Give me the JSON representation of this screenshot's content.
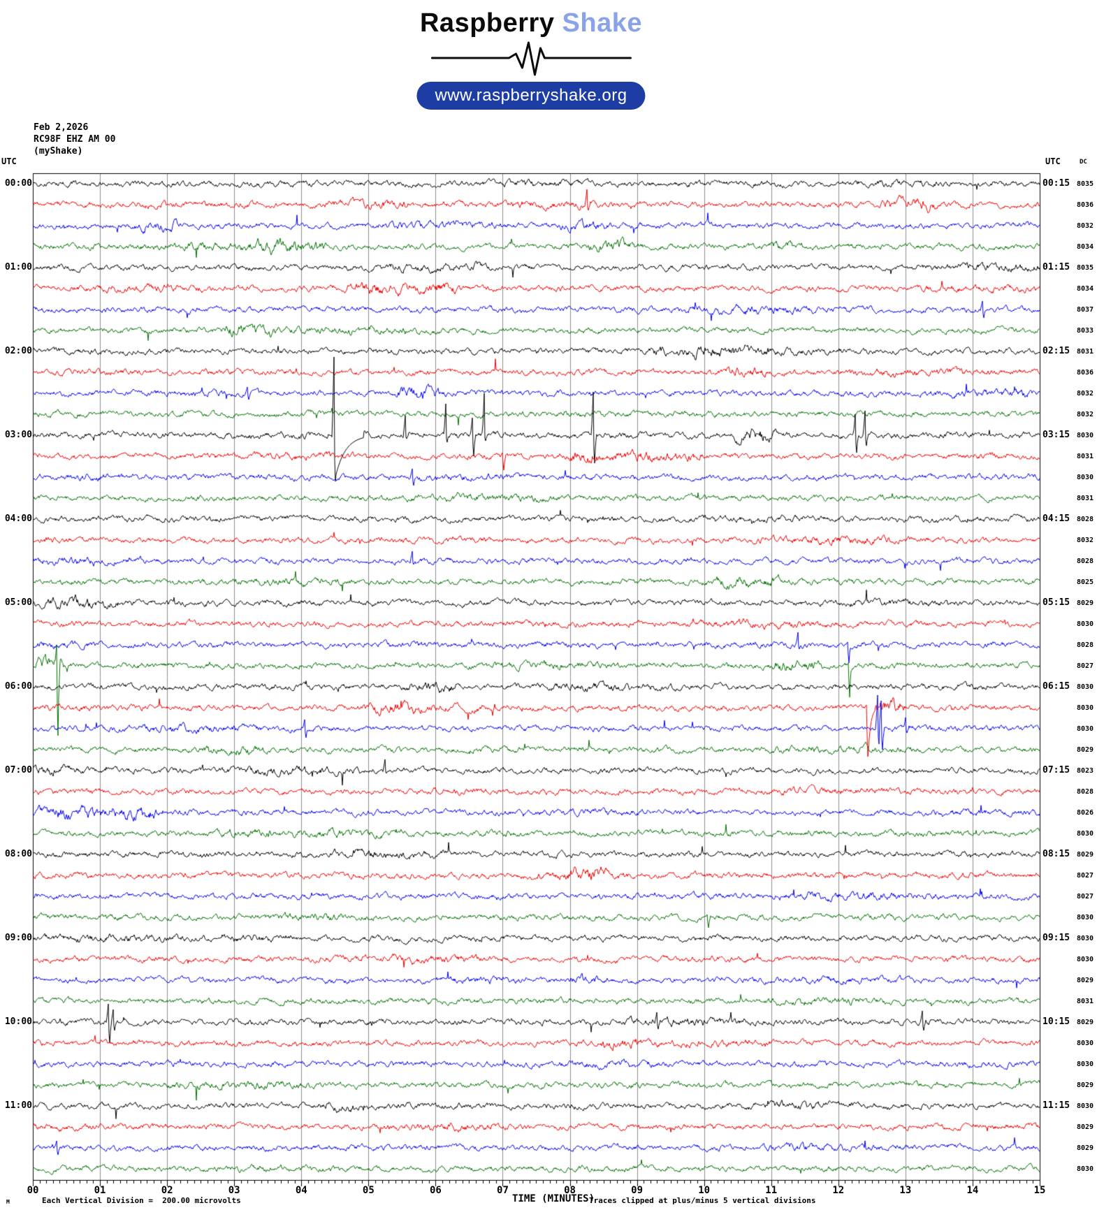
{
  "header": {
    "brand_black": "Raspberry",
    "brand_blue": "Shake",
    "url": "www.raspberryshake.org"
  },
  "station": {
    "date": "Feb 2,2026",
    "id": "RC98F EHZ AM 00",
    "network": "(myShake)"
  },
  "labels": {
    "utc_left": "UTC",
    "utc_right": "UTC",
    "dc_header": "DC",
    "xlabel": "TIME (MINUTES)",
    "clip_note": "Traces clipped at plus/minus 5 vertical divisions",
    "scale_note": "Each Vertical Division =  200.00 microvolts",
    "scale_glyph": "M"
  },
  "chart_data": {
    "type": "line",
    "subtype": "seismogram-helicorder",
    "title": "RC98F EHZ AM 00 helicorder, Feb 2,2026",
    "x_minutes_span": [
      0,
      15
    ],
    "x_tick_labels": [
      "00",
      "01",
      "02",
      "03",
      "04",
      "05",
      "06",
      "07",
      "08",
      "09",
      "10",
      "11",
      "12",
      "13",
      "14",
      "15"
    ],
    "minor_tick_step_minutes": 0.1,
    "row_line_colors": {
      "black": "#000000",
      "red": "#ee0000",
      "blue": "#0000ee",
      "green": "#007000"
    },
    "grid_color": "#8c8c8c",
    "rows_per_hour": 4,
    "minutes_per_row": 15,
    "rows": [
      {
        "color": "black",
        "dc": "8035",
        "left_label": "00:00",
        "right_label": "00:15"
      },
      {
        "color": "red",
        "dc": "8036"
      },
      {
        "color": "blue",
        "dc": "8032"
      },
      {
        "color": "green",
        "dc": "8034"
      },
      {
        "color": "black",
        "dc": "8035",
        "left_label": "01:00",
        "right_label": "01:15"
      },
      {
        "color": "red",
        "dc": "8034"
      },
      {
        "color": "blue",
        "dc": "8037"
      },
      {
        "color": "green",
        "dc": "8033"
      },
      {
        "color": "black",
        "dc": "8031",
        "left_label": "02:00",
        "right_label": "02:15"
      },
      {
        "color": "red",
        "dc": "8036"
      },
      {
        "color": "blue",
        "dc": "8032"
      },
      {
        "color": "green",
        "dc": "8032"
      },
      {
        "color": "black",
        "dc": "8030",
        "left_label": "03:00",
        "right_label": "03:15"
      },
      {
        "color": "red",
        "dc": "8031"
      },
      {
        "color": "blue",
        "dc": "8030"
      },
      {
        "color": "green",
        "dc": "8031"
      },
      {
        "color": "black",
        "dc": "8028",
        "left_label": "04:00",
        "right_label": "04:15"
      },
      {
        "color": "red",
        "dc": "8032"
      },
      {
        "color": "blue",
        "dc": "8028"
      },
      {
        "color": "green",
        "dc": "8025"
      },
      {
        "color": "black",
        "dc": "8029",
        "left_label": "05:00",
        "right_label": "05:15"
      },
      {
        "color": "red",
        "dc": "8030"
      },
      {
        "color": "blue",
        "dc": "8028"
      },
      {
        "color": "green",
        "dc": "8027"
      },
      {
        "color": "black",
        "dc": "8030",
        "left_label": "06:00",
        "right_label": "06:15"
      },
      {
        "color": "red",
        "dc": "8030"
      },
      {
        "color": "blue",
        "dc": "8030"
      },
      {
        "color": "green",
        "dc": "8029"
      },
      {
        "color": "black",
        "dc": "8023",
        "left_label": "07:00",
        "right_label": "07:15"
      },
      {
        "color": "red",
        "dc": "8028"
      },
      {
        "color": "blue",
        "dc": "8026"
      },
      {
        "color": "green",
        "dc": "8030"
      },
      {
        "color": "black",
        "dc": "8029",
        "left_label": "08:00",
        "right_label": "08:15"
      },
      {
        "color": "red",
        "dc": "8027"
      },
      {
        "color": "blue",
        "dc": "8027"
      },
      {
        "color": "green",
        "dc": "8030"
      },
      {
        "color": "black",
        "dc": "8030",
        "left_label": "09:00",
        "right_label": "09:15"
      },
      {
        "color": "red",
        "dc": "8030"
      },
      {
        "color": "blue",
        "dc": "8029"
      },
      {
        "color": "green",
        "dc": "8031"
      },
      {
        "color": "black",
        "dc": "8029",
        "left_label": "10:00",
        "right_label": "10:15"
      },
      {
        "color": "red",
        "dc": "8030"
      },
      {
        "color": "blue",
        "dc": "8030"
      },
      {
        "color": "green",
        "dc": "8029"
      },
      {
        "color": "black",
        "dc": "8030",
        "left_label": "11:00",
        "right_label": "11:15"
      },
      {
        "color": "red",
        "dc": "8029"
      },
      {
        "color": "blue",
        "dc": "8029"
      },
      {
        "color": "green",
        "dc": "8030"
      }
    ],
    "events": [
      {
        "row": 1,
        "type": "burst",
        "m0": 4.4,
        "m1": 5.6,
        "amp": 1.6
      },
      {
        "row": 1,
        "type": "spike",
        "m": 8.25,
        "up": 22,
        "dn": 8
      },
      {
        "row": 1,
        "type": "burst",
        "m0": 12.7,
        "m1": 13.4,
        "amp": 2.0
      },
      {
        "row": 2,
        "type": "burst",
        "m0": 1.6,
        "m1": 2.1,
        "amp": 2.0
      },
      {
        "row": 2,
        "type": "burst",
        "m0": 7.9,
        "m1": 8.6,
        "amp": 1.6
      },
      {
        "row": 3,
        "type": "burst",
        "m0": 3.3,
        "m1": 4.3,
        "amp": 1.9
      },
      {
        "row": 3,
        "type": "burst",
        "m0": 8.3,
        "m1": 9.0,
        "amp": 1.9
      },
      {
        "row": 3,
        "type": "burst",
        "m0": 11.0,
        "m1": 11.4,
        "amp": 1.7
      },
      {
        "row": 4,
        "type": "burst",
        "m0": 5.3,
        "m1": 6.6,
        "amp": 1.6
      },
      {
        "row": 5,
        "type": "burst",
        "m0": 4.7,
        "m1": 6.3,
        "amp": 2.0
      },
      {
        "row": 6,
        "type": "spike",
        "m": 14.15,
        "up": 12,
        "dn": 12
      },
      {
        "row": 7,
        "type": "burst",
        "m0": 2.9,
        "m1": 3.6,
        "amp": 2.0
      },
      {
        "row": 8,
        "type": "burst",
        "m0": 9.2,
        "m1": 10.6,
        "amp": 1.7
      },
      {
        "row": 9,
        "type": "burst",
        "m0": 10.4,
        "m1": 10.9,
        "amp": 1.7
      },
      {
        "row": 10,
        "type": "spike",
        "m": 3.2,
        "up": 9,
        "dn": 9
      },
      {
        "row": 10,
        "type": "burst",
        "m0": 5.5,
        "m1": 6.0,
        "amp": 2.4
      },
      {
        "row": 12,
        "type": "spike",
        "m": 4.49,
        "up": 112,
        "dn": 66,
        "tail": 40
      },
      {
        "row": 12,
        "type": "spike",
        "m": 5.55,
        "up": 28,
        "dn": 5
      },
      {
        "row": 12,
        "type": "spike",
        "m": 6.15,
        "up": 45,
        "dn": 10
      },
      {
        "row": 12,
        "type": "spike",
        "m": 6.55,
        "up": 25,
        "dn": 30
      },
      {
        "row": 12,
        "type": "spike",
        "m": 6.72,
        "up": 60,
        "dn": 8
      },
      {
        "row": 12,
        "type": "spike",
        "m": 8.35,
        "up": 62,
        "dn": 40
      },
      {
        "row": 12,
        "type": "burst",
        "m0": 10.5,
        "m1": 11.0,
        "amp": 2.5
      },
      {
        "row": 12,
        "type": "spike",
        "m": 12.25,
        "up": 30,
        "dn": 25
      },
      {
        "row": 12,
        "type": "spike",
        "m": 12.4,
        "up": 35,
        "dn": 15
      },
      {
        "row": 13,
        "type": "spike",
        "m": 7.0,
        "up": 5,
        "dn": 20
      },
      {
        "row": 13,
        "type": "burst",
        "m0": 8.0,
        "m1": 9.9,
        "amp": 1.9
      },
      {
        "row": 14,
        "type": "spike",
        "m": 5.65,
        "up": 12,
        "dn": 12
      },
      {
        "row": 18,
        "type": "spike",
        "m": 5.65,
        "up": 14,
        "dn": 5
      },
      {
        "row": 19,
        "type": "burst",
        "m0": 10.2,
        "m1": 11.1,
        "amp": 1.8
      },
      {
        "row": 20,
        "type": "burst",
        "m0": 0.3,
        "m1": 1.2,
        "amp": 1.4
      },
      {
        "row": 22,
        "type": "spike",
        "m": 11.4,
        "up": 18,
        "dn": 6
      },
      {
        "row": 22,
        "type": "spike",
        "m": 12.14,
        "up": 4,
        "dn": 26
      },
      {
        "row": 23,
        "type": "burst",
        "m0": 0.05,
        "m1": 0.5,
        "amp": 2.6
      },
      {
        "row": 23,
        "type": "spike",
        "m": 0.35,
        "up": 30,
        "dn": 100
      },
      {
        "row": 23,
        "type": "burst",
        "m0": 11.1,
        "m1": 11.7,
        "amp": 2.0
      },
      {
        "row": 23,
        "type": "spike",
        "m": 12.15,
        "up": 4,
        "dn": 45
      },
      {
        "row": 24,
        "type": "burst",
        "m0": 5.6,
        "m1": 6.3,
        "amp": 1.7
      },
      {
        "row": 25,
        "type": "burst",
        "m0": 5.0,
        "m1": 5.7,
        "amp": 1.8
      },
      {
        "row": 25,
        "type": "spike",
        "m": 12.42,
        "up": 4,
        "dn": 70,
        "tail": 10
      },
      {
        "row": 25,
        "type": "burst",
        "m0": 12.55,
        "m1": 12.95,
        "amp": 2.6
      },
      {
        "row": 26,
        "type": "spike",
        "m": 4.05,
        "up": 13,
        "dn": 13
      },
      {
        "row": 26,
        "type": "spike",
        "m": 12.58,
        "up": 48,
        "dn": 22
      },
      {
        "row": 26,
        "type": "spike",
        "m": 12.64,
        "up": 40,
        "dn": 30
      },
      {
        "row": 26,
        "type": "spike",
        "m": 13.0,
        "up": 16,
        "dn": 6
      },
      {
        "row": 27,
        "type": "burst",
        "m0": 2.6,
        "m1": 3.4,
        "amp": 1.7
      },
      {
        "row": 28,
        "type": "burst",
        "m0": 0.0,
        "m1": 0.7,
        "amp": 1.5
      },
      {
        "row": 28,
        "type": "spike",
        "m": 5.25,
        "up": 16,
        "dn": 4
      },
      {
        "row": 30,
        "type": "burst",
        "m0": 0.1,
        "m1": 1.8,
        "amp": 2.2
      },
      {
        "row": 31,
        "type": "burst",
        "m0": 2.8,
        "m1": 3.5,
        "amp": 1.6
      },
      {
        "row": 33,
        "type": "burst",
        "m0": 8.0,
        "m1": 8.5,
        "amp": 1.8
      },
      {
        "row": 35,
        "type": "spike",
        "m": 10.05,
        "up": 4,
        "dn": 15
      },
      {
        "row": 36,
        "type": "burst",
        "m0": 3.0,
        "m1": 3.5,
        "amp": 1.5
      },
      {
        "row": 38,
        "type": "burst",
        "m0": 8.0,
        "m1": 8.4,
        "amp": 1.6
      },
      {
        "row": 40,
        "type": "spike",
        "m": 1.12,
        "up": 26,
        "dn": 30
      },
      {
        "row": 40,
        "type": "spike",
        "m": 1.2,
        "up": 18,
        "dn": 12
      },
      {
        "row": 40,
        "type": "spike",
        "m": 9.3,
        "up": 14,
        "dn": 10
      },
      {
        "row": 40,
        "type": "spike",
        "m": 13.25,
        "up": 16,
        "dn": 12
      },
      {
        "row": 41,
        "type": "burst",
        "m0": 8.5,
        "m1": 9.0,
        "amp": 1.8
      },
      {
        "row": 44,
        "type": "burst",
        "m0": 4.3,
        "m1": 4.8,
        "amp": 1.6
      },
      {
        "row": 46,
        "type": "spike",
        "m": 0.35,
        "up": 10,
        "dn": 10
      }
    ],
    "clip_divisions": 5,
    "microvolts_per_division": "200.00"
  }
}
